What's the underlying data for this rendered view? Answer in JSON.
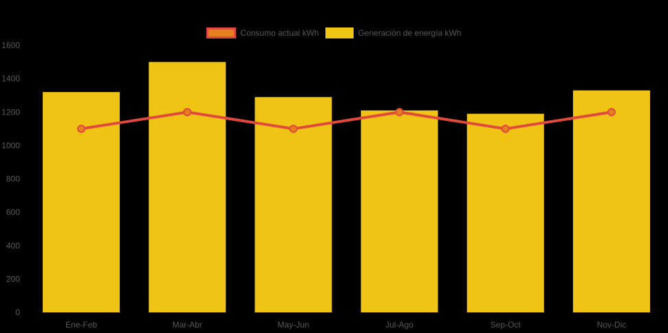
{
  "page": {
    "background": "#000000",
    "text_color": "#595959"
  },
  "chart_data": {
    "type": "bar",
    "title": "",
    "xlabel": "",
    "ylabel": "",
    "categories": [
      "Ene-Feb",
      "Mar-Abr",
      "May-Jun",
      "Jul-Ago",
      "Sep-Oct",
      "Nov-Dic"
    ],
    "series": [
      {
        "name": "Consumo actual kWh",
        "type": "line",
        "values": [
          1100,
          1200,
          1100,
          1200,
          1100,
          1200
        ],
        "color": "#E0493C",
        "marker_color": "#E5801F",
        "marker_shape": "circle"
      },
      {
        "name": "Generación de energía kWh",
        "type": "bar",
        "values": [
          1320,
          1500,
          1290,
          1210,
          1190,
          1330
        ],
        "color": "#F0C414"
      }
    ],
    "ylim": [
      0,
      1600
    ],
    "ytick_step": 200,
    "yticks": [
      0,
      200,
      400,
      600,
      800,
      1000,
      1200,
      1400,
      1600
    ],
    "grid": false,
    "legend_position": "top-center",
    "plot_background": "#000000"
  }
}
